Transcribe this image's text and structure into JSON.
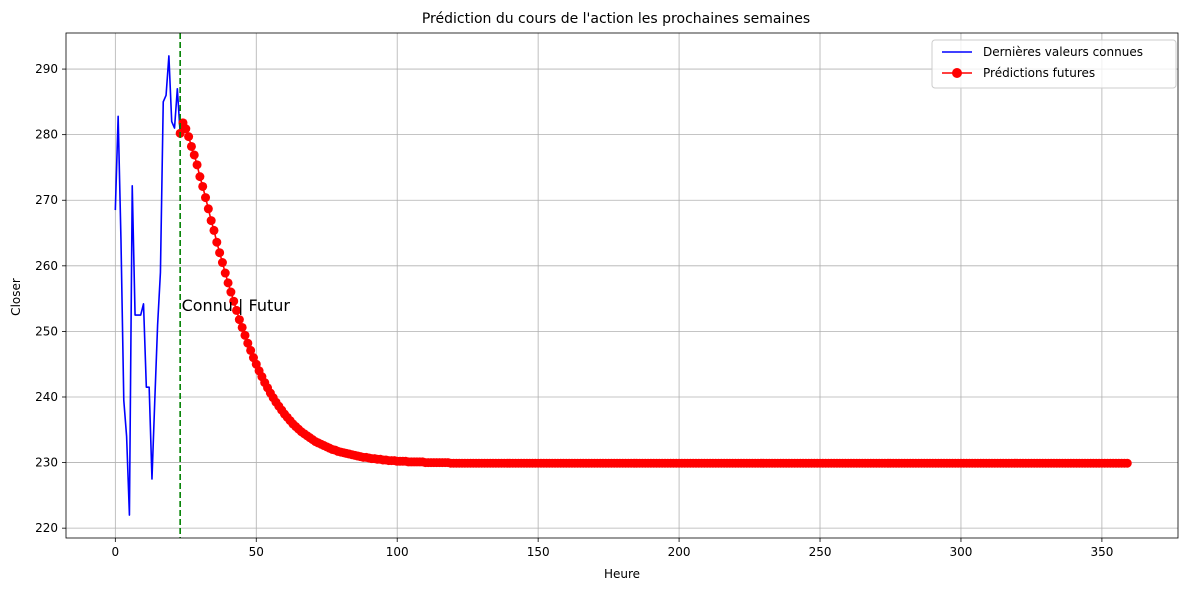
{
  "chart_data": {
    "type": "line",
    "title": "Prédiction du cours de l'action les prochaines semaines",
    "xlabel": "Heure",
    "ylabel": "Closer",
    "xlim": [
      -17.5,
      377
    ],
    "ylim": [
      218.5,
      295.5
    ],
    "xticks": [
      0,
      50,
      100,
      150,
      200,
      250,
      300,
      350
    ],
    "yticks": [
      220,
      230,
      240,
      250,
      260,
      270,
      280,
      290
    ],
    "grid": true,
    "legend_position": "top-right",
    "colors": {
      "known": "#0000ff",
      "future": "#ff0000",
      "divider": "#008000",
      "grid": "#b0b0b0"
    },
    "divider_x": 23,
    "annotation": {
      "text": "Connu | Futur",
      "x": 23.5,
      "y": 254
    },
    "series": [
      {
        "name": "Dernières valeurs connues",
        "style": "line",
        "x": [
          0,
          1,
          2,
          3,
          4,
          5,
          6,
          7,
          8,
          9,
          10,
          11,
          12,
          13,
          14,
          15,
          16,
          17,
          18,
          19,
          20,
          21,
          22,
          23
        ],
        "y": [
          268.5,
          282.8,
          264,
          239.5,
          234,
          222,
          272.2,
          252.5,
          252.5,
          252.5,
          254.2,
          241.5,
          241.5,
          227.5,
          239.5,
          251,
          259,
          285,
          286,
          292,
          282,
          281,
          287,
          280.2
        ]
      },
      {
        "name": "Prédictions futures",
        "style": "line-marker",
        "x0": 23,
        "x_end": 359,
        "values": [
          280.2,
          281.8,
          280.9,
          279.7,
          278.2,
          276.9,
          275.4,
          273.6,
          272.1,
          270.4,
          268.7,
          266.9,
          265.4,
          263.6,
          262.0,
          260.5,
          258.9,
          257.4,
          256.0,
          254.6,
          253.2,
          251.8,
          250.6,
          249.4,
          248.2,
          247.1,
          246.0,
          245.0,
          244.0,
          243.1,
          242.2,
          241.4,
          240.6,
          239.9,
          239.2,
          238.6,
          238.0,
          237.4,
          236.9,
          236.4,
          235.9,
          235.5,
          235.1,
          234.7,
          234.4,
          234.1,
          233.8,
          233.5,
          233.2,
          233.0,
          232.8,
          232.6,
          232.4,
          232.2,
          232.0,
          231.9,
          231.7,
          231.6,
          231.5,
          231.4,
          231.3,
          231.2,
          231.1,
          231.0,
          230.9,
          230.8,
          230.8,
          230.7,
          230.6,
          230.6,
          230.5,
          230.5,
          230.4,
          230.4,
          230.3,
          230.3,
          230.3,
          230.2,
          230.2,
          230.2,
          230.2,
          230.1,
          230.1,
          230.1,
          230.1,
          230.1,
          230.1,
          230.0,
          230.0,
          230.0,
          230.0,
          230.0,
          230.0,
          230.0,
          230.0,
          230.0
        ],
        "tail_value": 229.9
      }
    ]
  }
}
